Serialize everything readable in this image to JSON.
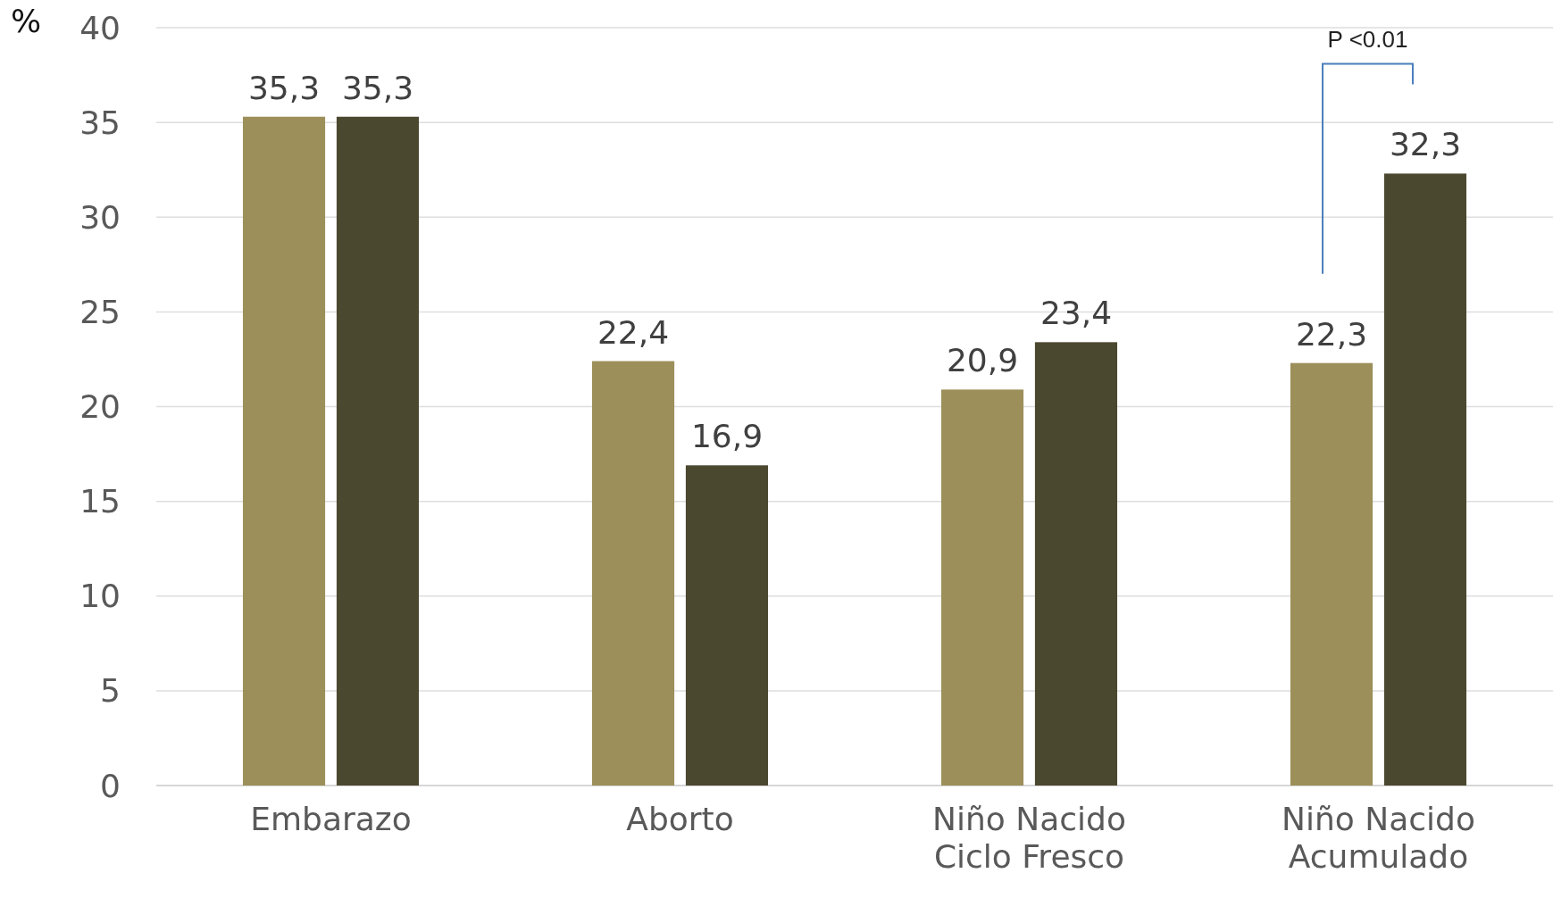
{
  "chart_data": {
    "type": "bar",
    "ylabel": "%",
    "categories": [
      "Embarazo",
      "Aborto",
      "Niño Nacido Ciclo Fresco",
      "Niño Nacido Acumulado"
    ],
    "series": [
      {
        "color": "#9c8f5a",
        "values": [
          35.3,
          22.4,
          20.9,
          22.3
        ],
        "value_labels": [
          "35,3",
          "22,4",
          "20,9",
          "22,3"
        ]
      },
      {
        "color": "#4b4830",
        "values": [
          35.3,
          16.9,
          23.4,
          32.3
        ],
        "value_labels": [
          "35,3",
          "16,9",
          "23,4",
          "32,3"
        ]
      }
    ],
    "ylim": [
      0,
      40
    ],
    "yticks": [
      0,
      5,
      10,
      15,
      20,
      25,
      30,
      35,
      40
    ],
    "grid": "y",
    "annotations": [
      "P <0.01"
    ]
  }
}
